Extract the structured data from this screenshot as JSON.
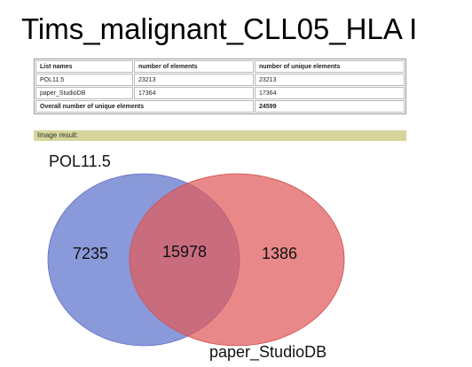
{
  "header": {
    "title": "Tims_malignant_CLL05_HLA I"
  },
  "table": {
    "columns": [
      "List names",
      "number of elements",
      "number of unique elements"
    ],
    "rows": [
      [
        "POL11.5",
        "23213",
        "23213"
      ],
      [
        "paper_StudioDB",
        "17364",
        "17364"
      ]
    ],
    "footer": {
      "label": "Overall number of unique elements",
      "value": "24599"
    }
  },
  "image_result": {
    "label": "Image result:"
  },
  "venn": {
    "sets": [
      {
        "label": "POL11.5",
        "only": "7235"
      },
      {
        "label": "paper_StudioDB",
        "only": "1386"
      }
    ],
    "intersection": "15978"
  }
}
